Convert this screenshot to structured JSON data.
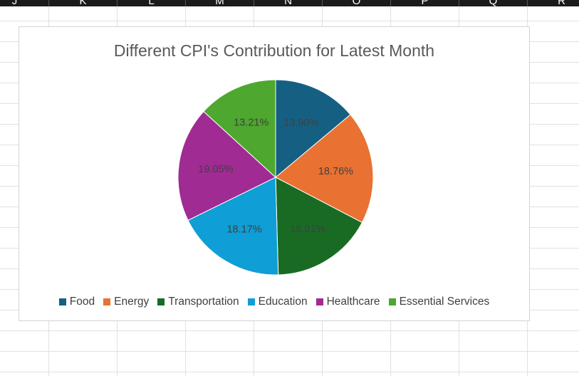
{
  "sheet": {
    "columns": [
      "J",
      "K",
      "L",
      "M",
      "N",
      "O",
      "P",
      "Q",
      "R"
    ]
  },
  "chart_data": {
    "type": "pie",
    "title": "Different CPI's Contribution  for Latest Month",
    "categories": [
      "Food",
      "Energy",
      "Transportation",
      "Education",
      "Healthcare",
      "Essential Services"
    ],
    "values": [
      13.9,
      18.76,
      16.91,
      18.17,
      19.05,
      13.21
    ],
    "data_labels": [
      "13.90%",
      "18.76%",
      "16.91%",
      "18.17%",
      "19.05%",
      "13.21%"
    ],
    "colors": [
      "#156082",
      "#E97132",
      "#196B24",
      "#0F9ED5",
      "#A02B93",
      "#4EA72E"
    ],
    "legend": "bottom"
  }
}
